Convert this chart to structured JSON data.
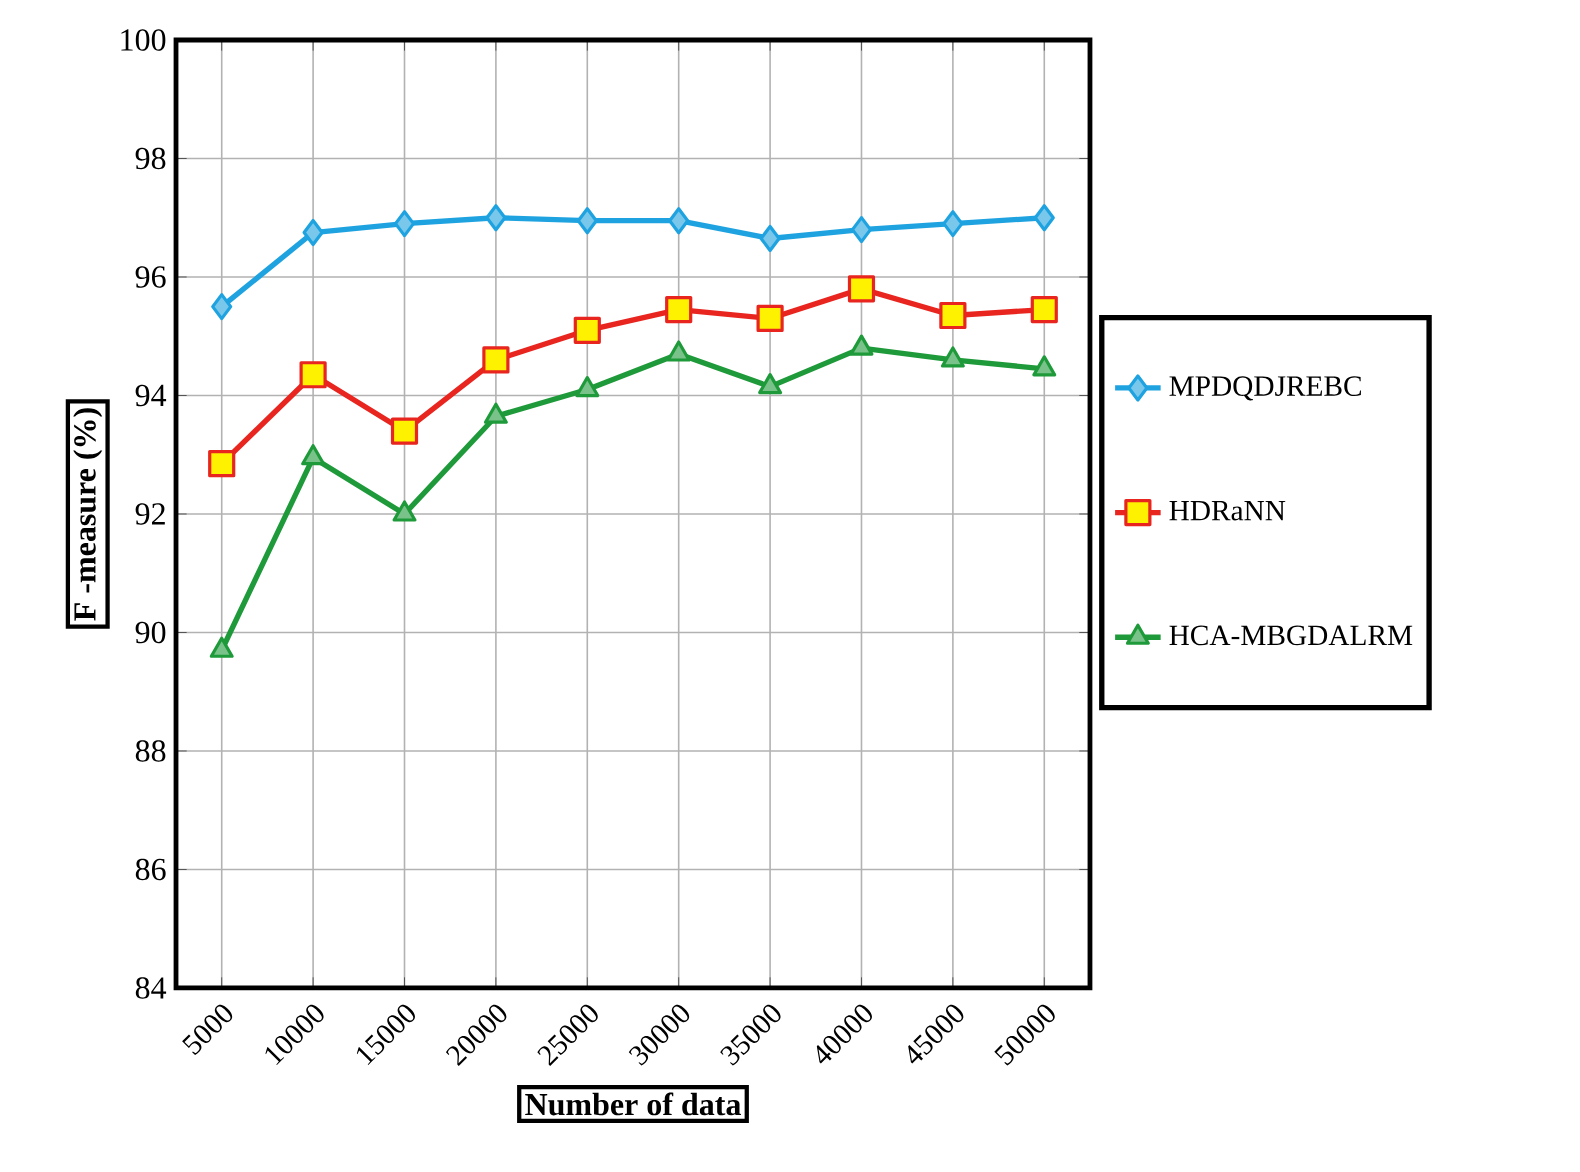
{
  "chart_data": {
    "type": "line",
    "xlabel": "Number of data",
    "ylabel": "F -measure (%)",
    "categories": [
      "5000",
      "10000",
      "15000",
      "20000",
      "25000",
      "30000",
      "35000",
      "40000",
      "45000",
      "50000"
    ],
    "series": [
      {
        "name": "MPDQDJREBC",
        "color": "#1fa3e0",
        "marker": "diamond",
        "values": [
          95.5,
          96.75,
          96.9,
          97.0,
          96.95,
          96.95,
          96.65,
          96.8,
          96.9,
          97.0
        ]
      },
      {
        "name": "HDRaNN",
        "color": "#e8251f",
        "marker": "square",
        "values": [
          92.85,
          94.35,
          93.4,
          94.6,
          95.1,
          95.45,
          95.3,
          95.8,
          95.35,
          95.45
        ]
      },
      {
        "name": "HCA-MBGDALRM",
        "color": "#1f9a3a",
        "marker": "triangle",
        "values": [
          89.7,
          92.95,
          92.0,
          93.65,
          94.1,
          94.7,
          94.15,
          94.8,
          94.6,
          94.45
        ]
      }
    ],
    "ylim": [
      84,
      100
    ],
    "yticks": [
      84,
      86,
      88,
      90,
      92,
      94,
      96,
      98,
      100
    ],
    "grid": true,
    "legend": "right",
    "line_style": "solid"
  }
}
